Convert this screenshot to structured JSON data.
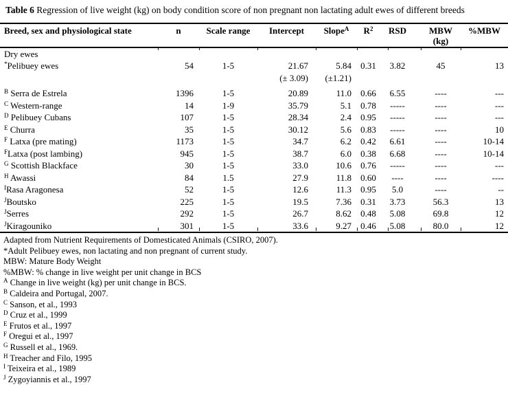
{
  "title": {
    "label": "Table 6",
    "text": "Regression of live weight (kg) on body condition score of non pregnant non lactating adult ewes of different breeds"
  },
  "table": {
    "headers": {
      "breed": "Breed, sex and physiological state",
      "n": "n",
      "scale_range": "Scale range",
      "intercept": "Intercept",
      "slope": "Slope",
      "slope_sup": "A",
      "r": "R",
      "r_sup": "2",
      "rsd": "RSD",
      "mbw": "MBW",
      "mbw_unit": "(kg)",
      "pmbw": "%MBW"
    },
    "group_label": "Dry ewes",
    "rows": [
      {
        "sup": "*",
        "name": "Pelibuey ewes",
        "n": "54",
        "scale": "1-5",
        "intercept": "21.67",
        "intercept_se": "(± 3.09)",
        "slope": "5.84",
        "slope_se": "(±1.21)",
        "r2": "0.31",
        "rsd": "3.82",
        "mbw": "45",
        "pmbw": "13"
      },
      {
        "sup": "B",
        "name": " Serra de Estrela",
        "n": "1396",
        "scale": "1-5",
        "intercept": "20.89",
        "slope": "11.0",
        "r2": "0.66",
        "rsd": "6.55",
        "mbw": "----",
        "pmbw": "---"
      },
      {
        "sup": "C",
        "name": " Western-range",
        "n": "14",
        "scale": "1-9",
        "intercept": "35.79",
        "slope": "5.1",
        "r2": "0.78",
        "rsd": "-----",
        "mbw": "----",
        "pmbw": "---"
      },
      {
        "sup": "D",
        "name": " Pelibuey Cubans",
        "n": "107",
        "scale": "1-5",
        "intercept": "28.34",
        "slope": "2.4",
        "r2": "0.95",
        "rsd": "-----",
        "mbw": "----",
        "pmbw": "---"
      },
      {
        "sup": "E",
        "name": " Churra",
        "n": "35",
        "scale": "1-5",
        "intercept": "30.12",
        "slope": "5.6",
        "r2": "0.83",
        "rsd": "-----",
        "mbw": "----",
        "pmbw": "10"
      },
      {
        "sup": "F",
        "name": " Latxa (pre mating)",
        "n": "1173",
        "scale": "1-5",
        "intercept": "34.7",
        "slope": "6.2",
        "r2": "0.42",
        "rsd": "6.61",
        "mbw": "----",
        "pmbw": "10-14"
      },
      {
        "sup": "F",
        "name": "Latxa (post lambing)",
        "n": "945",
        "scale": "1-5",
        "intercept": "38.7",
        "slope": "6.0",
        "r2": "0.38",
        "rsd": "6.68",
        "mbw": "----",
        "pmbw": "10-14"
      },
      {
        "sup": "G",
        "name": " Scottish Blackface",
        "n": "30",
        "scale": "1-5",
        "intercept": "33.0",
        "slope": "10.6",
        "r2": "0.76",
        "rsd": "-----",
        "mbw": "----",
        "pmbw": "---"
      },
      {
        "sup": "H",
        "name": " Awassi",
        "n": "84",
        "scale": "1.5",
        "intercept": "27.9",
        "slope": "11.8",
        "r2": "0.60",
        "rsd": "----",
        "mbw": "----",
        "pmbw": "----"
      },
      {
        "sup": "I",
        "name": "Rasa Aragonesa",
        "n": "52",
        "scale": "1-5",
        "intercept": "12.6",
        "slope": "11.3",
        "r2": "0.95",
        "rsd": "5.0",
        "mbw": "----",
        "pmbw": "--"
      },
      {
        "sup": "J",
        "name": "Boutsko",
        "n": "225",
        "scale": "1-5",
        "intercept": "19.5",
        "slope": "7.36",
        "r2": "0.31",
        "rsd": "3.73",
        "mbw": "56.3",
        "pmbw": "13"
      },
      {
        "sup": "J",
        "name": "Serres",
        "n": "292",
        "scale": "1-5",
        "intercept": "26.7",
        "slope": "8.62",
        "r2": "0.48",
        "rsd": "5.08",
        "mbw": "69.8",
        "pmbw": "12"
      },
      {
        "sup": "J",
        "name": "Kiragouniko",
        "n": "301",
        "scale": "1-5",
        "intercept": "33.6",
        "slope": "9.27",
        "r2": "0.46",
        "rsd": "5.08",
        "mbw": "80.0",
        "pmbw": "12"
      }
    ]
  },
  "footnotes": [
    {
      "sup": "",
      "text": "Adapted from Nutrient Requirements of Domesticated Animals (CSIRO, 2007)."
    },
    {
      "sup": "",
      "text": "*Adult Pelibuey ewes, non lactating and non pregnant of current study."
    },
    {
      "sup": "",
      "text": "MBW: Mature Body Weight"
    },
    {
      "sup": "",
      "text": "%MBW: % change in live weight per unit change in BCS"
    },
    {
      "sup": "A",
      "text": "Change in live weight (kg) per unit change in BCS."
    },
    {
      "sup": "B",
      "text": "Caldeira and Portugal, 2007."
    },
    {
      "sup": "C",
      "text": "Sanson, et al., 1993"
    },
    {
      "sup": "D",
      "text": "Cruz et al., 1999"
    },
    {
      "sup": "E",
      "text": "Frutos et al., 1997"
    },
    {
      "sup": "F",
      "text": "Oregui et al., 1997"
    },
    {
      "sup": "G",
      "text": "Russell et al., 1969."
    },
    {
      "sup": "H",
      "text": "Treacher and Filo, 1995"
    },
    {
      "sup": "I",
      "text": "Teixeira et al., 1989"
    },
    {
      "sup": "J",
      "text": "Zygoyiannis et al., 1997"
    }
  ],
  "colors": {
    "text": "#000000",
    "background": "#ffffff",
    "rule": "#000000"
  }
}
